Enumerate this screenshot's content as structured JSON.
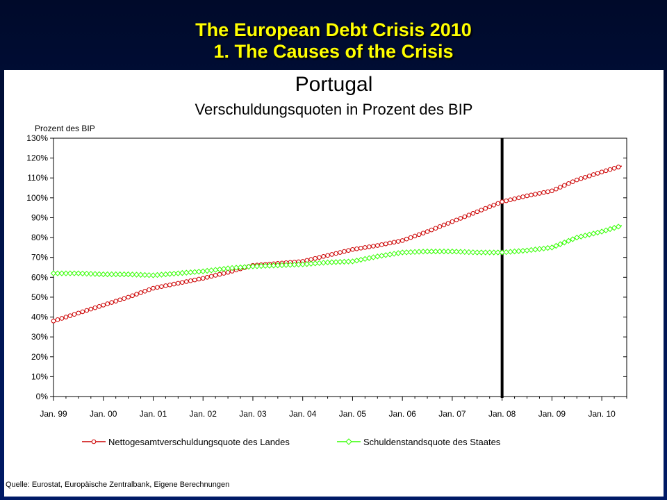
{
  "slide": {
    "title_line1": "The European Debt Crisis 2010",
    "title_line2": "1. The Causes of the Crisis",
    "title_color": "#ffff00"
  },
  "chart_data": {
    "type": "line",
    "title": "Portugal",
    "subtitle": "Verschuldungsquoten in Prozent des BIP",
    "ylabel": "Prozent des BIP",
    "ylim": [
      0,
      130
    ],
    "yticks": [
      "0%",
      "10%",
      "20%",
      "30%",
      "40%",
      "50%",
      "60%",
      "70%",
      "80%",
      "90%",
      "100%",
      "110%",
      "120%",
      "130%"
    ],
    "xticks": [
      "Jan. 99",
      "Jan. 00",
      "Jan. 01",
      "Jan. 02",
      "Jan. 03",
      "Jan. 04",
      "Jan. 05",
      "Jan. 06",
      "Jan. 07",
      "Jan. 08",
      "Jan. 09",
      "Jan. 10"
    ],
    "x_years": [
      1999,
      2000,
      2001,
      2002,
      2003,
      2004,
      2005,
      2006,
      2007,
      2008,
      2009,
      2010
    ],
    "vertical_marker": "Jan. 08",
    "grid": false,
    "legend_placement": "bottom",
    "source": "Quelle: Eurostat, Europäische Zentralbank, Eigene Berechnungen",
    "series": [
      {
        "name": "Nettogesamtverschuldungsquote des Landes",
        "color": "#cc0000",
        "marker": "circle",
        "points": [
          [
            1999.0,
            38
          ],
          [
            1999.5,
            42
          ],
          [
            2000.0,
            46
          ],
          [
            2000.5,
            50
          ],
          [
            2001.0,
            54.5
          ],
          [
            2001.5,
            57
          ],
          [
            2002.0,
            59.5
          ],
          [
            2002.5,
            62.5
          ],
          [
            2003.0,
            66
          ],
          [
            2003.5,
            67
          ],
          [
            2004.0,
            68
          ],
          [
            2004.5,
            71
          ],
          [
            2005.0,
            74
          ],
          [
            2005.5,
            76
          ],
          [
            2006.0,
            78.5
          ],
          [
            2006.5,
            83
          ],
          [
            2007.0,
            88
          ],
          [
            2007.5,
            93
          ],
          [
            2008.0,
            98
          ],
          [
            2008.5,
            101
          ],
          [
            2009.0,
            103.5
          ],
          [
            2009.5,
            109
          ],
          [
            2010.0,
            113
          ],
          [
            2010.4,
            116
          ]
        ]
      },
      {
        "name": "Schuldenstandsquote des Staates",
        "color": "#33ff00",
        "marker": "diamond",
        "points": [
          [
            1999.0,
            62
          ],
          [
            1999.5,
            62
          ],
          [
            2000.0,
            61.5
          ],
          [
            2000.5,
            61.5
          ],
          [
            2001.0,
            61
          ],
          [
            2001.5,
            62
          ],
          [
            2002.0,
            63
          ],
          [
            2002.5,
            64.5
          ],
          [
            2003.0,
            65.5
          ],
          [
            2003.5,
            66
          ],
          [
            2004.0,
            66.5
          ],
          [
            2004.5,
            67.5
          ],
          [
            2005.0,
            68
          ],
          [
            2005.5,
            70.5
          ],
          [
            2006.0,
            72.5
          ],
          [
            2006.5,
            73
          ],
          [
            2007.0,
            73
          ],
          [
            2007.5,
            72.5
          ],
          [
            2008.0,
            72.5
          ],
          [
            2008.5,
            73.5
          ],
          [
            2009.0,
            75
          ],
          [
            2009.5,
            80
          ],
          [
            2010.0,
            83
          ],
          [
            2010.4,
            86
          ]
        ]
      }
    ]
  }
}
